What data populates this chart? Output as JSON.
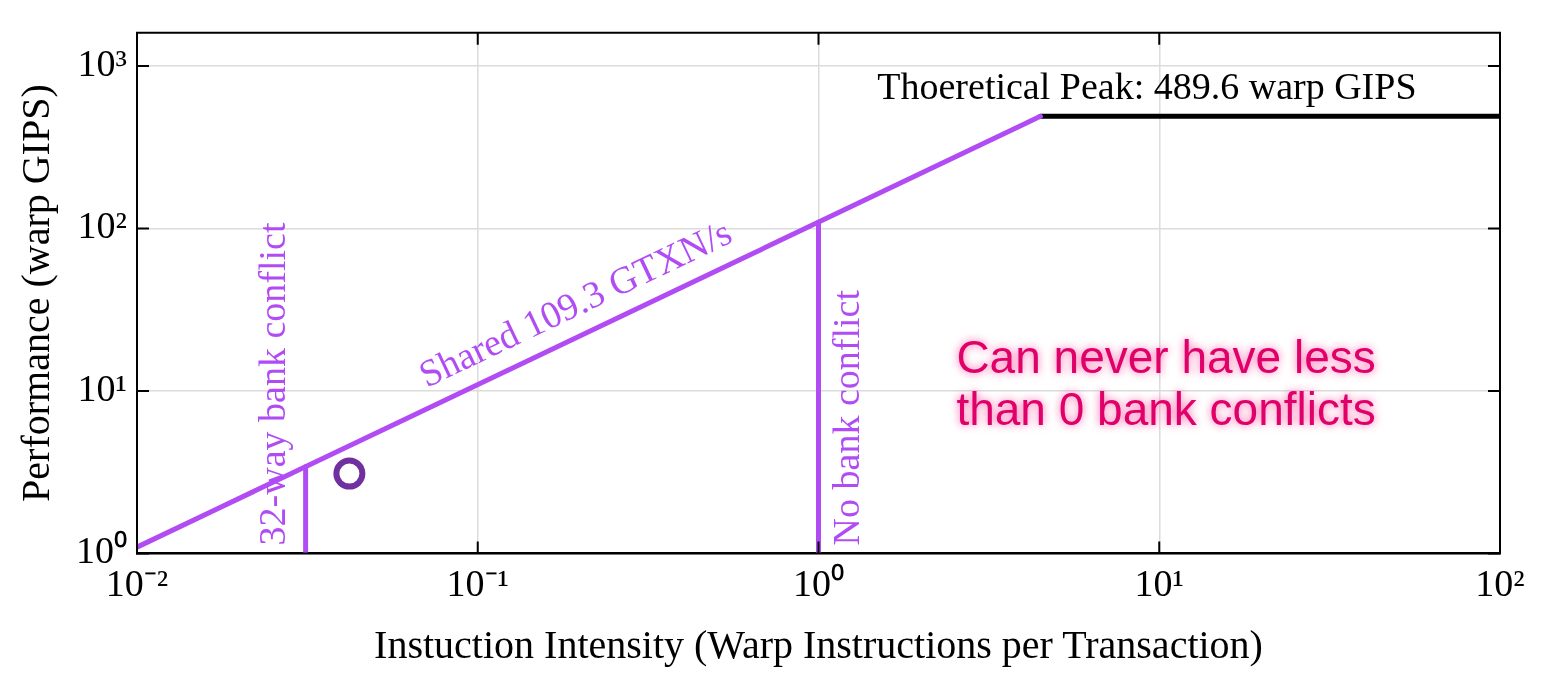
{
  "chart_data": {
    "type": "line",
    "xlabel": "Instuction Intensity (Warp Instructions per Transaction)",
    "ylabel": "Performance (warp GIPS)",
    "log": "xy",
    "grid": true,
    "legend": false,
    "xlim": [
      0.01,
      100
    ],
    "ylim": [
      1,
      1600
    ],
    "xticks": [
      {
        "value": 0.01,
        "label": "10⁻²"
      },
      {
        "value": 0.1,
        "label": "10⁻¹"
      },
      {
        "value": 1,
        "label": "10⁰"
      },
      {
        "value": 10,
        "label": "10¹"
      },
      {
        "value": 100,
        "label": "10²"
      }
    ],
    "yticks": [
      {
        "value": 1,
        "label": "10⁰"
      },
      {
        "value": 10,
        "label": "10¹"
      },
      {
        "value": 100,
        "label": "10²"
      },
      {
        "value": 1000,
        "label": "10³"
      }
    ],
    "series": [
      {
        "name": "Shared 109.3 GTXN/s",
        "color": "#b14cf5",
        "x": [
          0.01,
          4.479
        ],
        "values": [
          1.093,
          489.6
        ]
      },
      {
        "color": "#000000",
        "x": [
          4.479,
          100
        ],
        "values": [
          489.6,
          489.6
        ]
      },
      {
        "name": "32-way bank conflict",
        "color": "#b14cf5",
        "x": [
          0.03125,
          0.03125
        ],
        "values": [
          1,
          3.416
        ]
      },
      {
        "name": "No bank conflict",
        "color": "#b14cf5",
        "x": [
          1,
          1
        ],
        "values": [
          1,
          109.3
        ]
      },
      {
        "type": "scatter",
        "marker": "circle",
        "color": "#7030a0",
        "x": [
          0.042
        ],
        "values": [
          3.1
        ]
      }
    ],
    "annotations": [
      "Can never have less than 0 bank conflicts",
      {
        "text": "Thoeretical Peak: 489.6 warp GIPS",
        "x": 9.2,
        "y": 489.6
      }
    ]
  }
}
